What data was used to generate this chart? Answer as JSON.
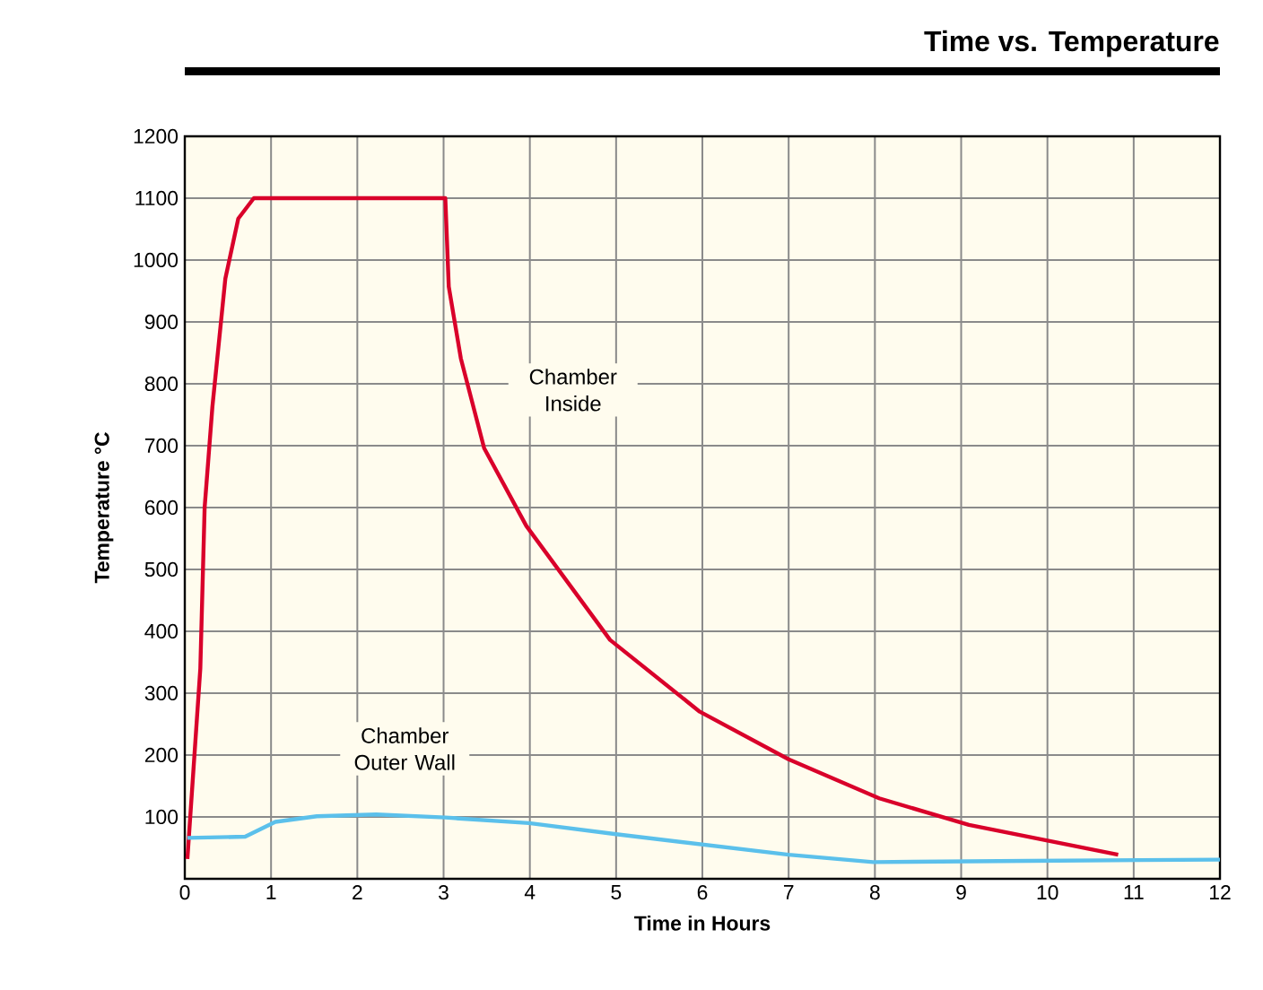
{
  "chart_data": {
    "type": "line",
    "title": "Time vs. Temperature",
    "xlabel": "Time in Hours",
    "ylabel": "Temperature °C",
    "xlim": [
      0,
      12
    ],
    "ylim": [
      0,
      1200
    ],
    "xticks": [
      0,
      1,
      2,
      3,
      4,
      5,
      6,
      7,
      8,
      9,
      10,
      11,
      12
    ],
    "yticks": [
      100,
      200,
      300,
      400,
      500,
      600,
      700,
      800,
      900,
      1000,
      1100,
      1200
    ],
    "grid": true,
    "marker": "none",
    "line_style": "solid",
    "series": [
      {
        "name": "Chamber Inside",
        "color": "#d9002a",
        "x": [
          0.03,
          0.18,
          0.23,
          0.32,
          0.47,
          0.62,
          0.8,
          3.02,
          3.06,
          3.2,
          3.47,
          3.96,
          4.93,
          5.97,
          7.0,
          8.05,
          9.09,
          10.82
        ],
        "values": [
          32,
          340,
          600,
          763,
          970,
          1067,
          1100,
          1100,
          957,
          841,
          696,
          570,
          386,
          270,
          193,
          130,
          87,
          39
        ]
      },
      {
        "name": "Chamber Outer Wall",
        "color": "#5bc0eb",
        "x": [
          0.03,
          0.7,
          1.05,
          1.53,
          2.22,
          3.02,
          3.99,
          5.0,
          7.0,
          7.98,
          9.78,
          12.0
        ],
        "values": [
          66,
          68,
          92,
          101,
          104,
          99,
          90,
          72,
          39,
          27,
          29,
          31
        ]
      }
    ]
  }
}
